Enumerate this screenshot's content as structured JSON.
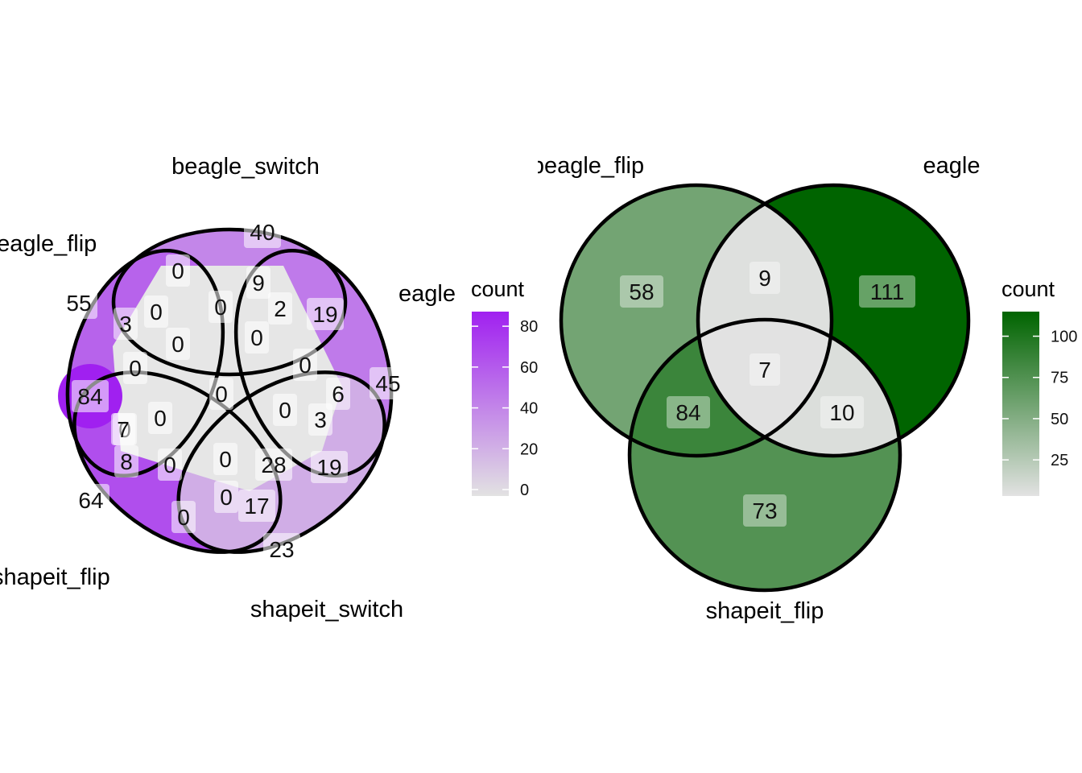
{
  "chart_data": [
    {
      "type": "venn",
      "sets": [
        "beagle_switch",
        "beagle_flip",
        "eagle",
        "shapeit_flip",
        "shapeit_switch"
      ],
      "regions": [
        {
          "value": 40
        },
        {
          "value": 55
        },
        {
          "value": 45
        },
        {
          "value": 64
        },
        {
          "value": 23
        },
        {
          "value": 0
        },
        {
          "value": 9
        },
        {
          "value": 2
        },
        {
          "value": 19
        },
        {
          "value": 3
        },
        {
          "value": 0
        },
        {
          "value": 0
        },
        {
          "value": 0
        },
        {
          "value": 0
        },
        {
          "value": 0
        },
        {
          "value": 0
        },
        {
          "value": 0
        },
        {
          "value": 6
        },
        {
          "value": 84
        },
        {
          "value": 0
        },
        {
          "value": 0
        },
        {
          "value": 0
        },
        {
          "value": 3
        },
        {
          "value": 7
        },
        {
          "value": 8
        },
        {
          "value": 0
        },
        {
          "value": 0
        },
        {
          "value": 28
        },
        {
          "value": 19
        },
        {
          "value": 0
        },
        {
          "value": 17
        },
        {
          "value": 0
        }
      ],
      "legend": {
        "title": "count",
        "ticks": [
          0,
          20,
          40,
          60,
          80
        ],
        "min": 0,
        "max": 84,
        "low_color": "#e2e2e2",
        "high_color": "#a020f0"
      }
    },
    {
      "type": "venn",
      "sets": [
        "beagle_flip",
        "eagle",
        "shapeit_flip"
      ],
      "regions": [
        {
          "value": 58
        },
        {
          "value": 9
        },
        {
          "value": 111
        },
        {
          "value": 7
        },
        {
          "value": 84
        },
        {
          "value": 10
        },
        {
          "value": 73
        }
      ],
      "legend": {
        "title": "count",
        "ticks": [
          25,
          50,
          75,
          100
        ],
        "min": 7,
        "max": 111,
        "low_color": "#e2e2e2",
        "high_color": "#006400"
      }
    }
  ]
}
